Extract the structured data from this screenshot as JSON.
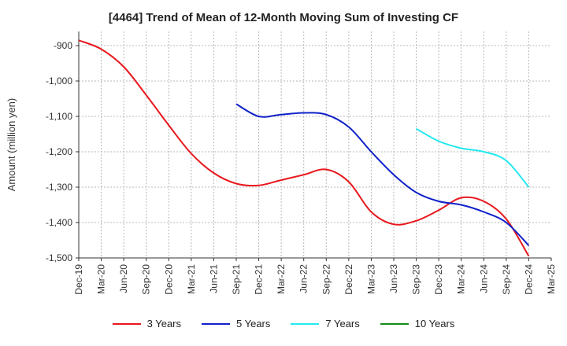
{
  "chart_data": {
    "type": "line",
    "title": "[4464]  Trend of Mean of 12-Month Moving Sum of Investing CF",
    "xlabel": "",
    "ylabel": "Amount (million yen)",
    "ylim": [
      -1500,
      -860
    ],
    "yticks": [
      -900,
      -1000,
      -1100,
      -1200,
      -1300,
      -1400,
      -1500
    ],
    "ytick_labels": [
      "-900",
      "-1,000",
      "-1,100",
      "-1,200",
      "-1,300",
      "-1,400",
      "-1,500"
    ],
    "categories": [
      "Dec-19",
      "Mar-20",
      "Jun-20",
      "Sep-20",
      "Dec-20",
      "Mar-21",
      "Jun-21",
      "Sep-21",
      "Dec-21",
      "Mar-22",
      "Jun-22",
      "Sep-22",
      "Dec-22",
      "Mar-23",
      "Jun-23",
      "Sep-23",
      "Dec-23",
      "Mar-24",
      "Jun-24",
      "Sep-24",
      "Dec-24",
      "Mar-25"
    ],
    "series": [
      {
        "name": "3 Years",
        "color": "#e8171d",
        "values": [
          -885,
          -910,
          -960,
          -1040,
          -1125,
          -1205,
          -1260,
          -1290,
          -1295,
          -1280,
          -1265,
          -1250,
          -1285,
          -1370,
          -1405,
          -1395,
          -1365,
          -1330,
          -1340,
          -1390,
          -1495,
          null
        ]
      },
      {
        "name": "5 Years",
        "color": "#1021c9",
        "values": [
          null,
          null,
          null,
          null,
          null,
          null,
          null,
          -1065,
          -1100,
          -1095,
          -1090,
          -1095,
          -1130,
          -1200,
          -1265,
          -1315,
          -1340,
          -1350,
          -1370,
          -1400,
          -1465,
          null
        ]
      },
      {
        "name": "7 Years",
        "color": "#22e8ef",
        "values": [
          null,
          null,
          null,
          null,
          null,
          null,
          null,
          null,
          null,
          null,
          null,
          null,
          null,
          null,
          null,
          -1135,
          -1170,
          -1190,
          -1200,
          -1225,
          -1300,
          null
        ]
      },
      {
        "name": "10 Years",
        "color": "#178a17",
        "values": [
          null,
          null,
          null,
          null,
          null,
          null,
          null,
          null,
          null,
          null,
          null,
          null,
          null,
          null,
          null,
          null,
          null,
          null,
          null,
          null,
          null,
          null
        ]
      }
    ]
  }
}
